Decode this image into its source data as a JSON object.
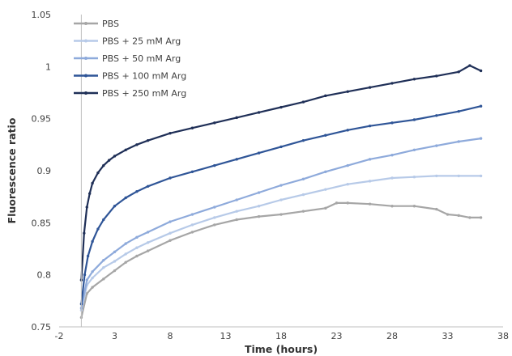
{
  "chart_data": {
    "type": "line",
    "title": "",
    "xlabel": "Time (hours)",
    "ylabel": "Fluorescence ratio",
    "xlim": [
      -2,
      38
    ],
    "ylim": [
      0.75,
      1.05
    ],
    "xticks": [
      -2,
      3,
      8,
      13,
      18,
      23,
      28,
      33,
      38
    ],
    "yticks": [
      0.75,
      0.8,
      0.85,
      0.9,
      0.95,
      1,
      1.05
    ],
    "xtick_labels": [
      "-2",
      "3",
      "8",
      "13",
      "18",
      "23",
      "28",
      "33",
      "38"
    ],
    "ytick_labels": [
      "0.75",
      "0.8",
      "0.85",
      "0.9",
      "0.95",
      "1",
      "1.05"
    ],
    "grid": false,
    "legend_position": "top-left",
    "series": [
      {
        "name": "PBS",
        "color": "#a6a6a6",
        "x": [
          0,
          0.5,
          1,
          2,
          3,
          4,
          5,
          6,
          8,
          10,
          12,
          14,
          16,
          18,
          20,
          22,
          23,
          24,
          26,
          28,
          30,
          32,
          33,
          34,
          35,
          36
        ],
        "y": [
          0.759,
          0.782,
          0.788,
          0.796,
          0.804,
          0.812,
          0.818,
          0.823,
          0.833,
          0.841,
          0.848,
          0.853,
          0.856,
          0.858,
          0.861,
          0.864,
          0.869,
          0.869,
          0.868,
          0.866,
          0.866,
          0.863,
          0.858,
          0.857,
          0.855,
          0.855
        ]
      },
      {
        "name": "PBS + 25 mM Arg",
        "color": "#b7cae8",
        "x": [
          0,
          0.5,
          1,
          2,
          3,
          4,
          5,
          6,
          8,
          10,
          12,
          14,
          16,
          18,
          20,
          22,
          24,
          26,
          28,
          30,
          32,
          34,
          36
        ],
        "y": [
          0.766,
          0.79,
          0.797,
          0.807,
          0.813,
          0.82,
          0.826,
          0.831,
          0.84,
          0.848,
          0.855,
          0.861,
          0.866,
          0.872,
          0.877,
          0.882,
          0.887,
          0.89,
          0.893,
          0.894,
          0.895,
          0.895,
          0.895
        ]
      },
      {
        "name": "PBS + 50 mM Arg",
        "color": "#8eaadb",
        "x": [
          0,
          0.5,
          1,
          2,
          3,
          4,
          5,
          6,
          8,
          10,
          12,
          14,
          16,
          18,
          20,
          22,
          24,
          26,
          28,
          30,
          32,
          34,
          36
        ],
        "y": [
          0.768,
          0.795,
          0.803,
          0.814,
          0.822,
          0.83,
          0.836,
          0.841,
          0.851,
          0.858,
          0.865,
          0.872,
          0.879,
          0.886,
          0.892,
          0.899,
          0.905,
          0.911,
          0.915,
          0.92,
          0.924,
          0.928,
          0.931
        ]
      },
      {
        "name": "PBS + 100 mM Arg",
        "color": "#2f5597",
        "x": [
          0,
          0.3,
          0.6,
          1,
          1.5,
          2,
          3,
          4,
          5,
          6,
          8,
          10,
          12,
          14,
          16,
          18,
          20,
          22,
          24,
          26,
          28,
          30,
          32,
          34,
          36
        ],
        "y": [
          0.772,
          0.8,
          0.818,
          0.832,
          0.844,
          0.853,
          0.866,
          0.874,
          0.88,
          0.885,
          0.893,
          0.899,
          0.905,
          0.911,
          0.917,
          0.923,
          0.929,
          0.934,
          0.939,
          0.943,
          0.946,
          0.949,
          0.953,
          0.957,
          0.962
        ]
      },
      {
        "name": "PBS + 250 mM Arg",
        "color": "#1f2f57",
        "x": [
          0,
          0.25,
          0.5,
          0.75,
          1,
          1.5,
          2,
          2.5,
          3,
          4,
          5,
          6,
          8,
          10,
          12,
          14,
          16,
          18,
          20,
          22,
          24,
          26,
          28,
          30,
          32,
          34,
          35,
          36
        ],
        "y": [
          0.795,
          0.84,
          0.865,
          0.878,
          0.888,
          0.898,
          0.905,
          0.91,
          0.914,
          0.92,
          0.925,
          0.929,
          0.936,
          0.941,
          0.946,
          0.951,
          0.956,
          0.961,
          0.966,
          0.972,
          0.976,
          0.98,
          0.984,
          0.988,
          0.991,
          0.995,
          1.001,
          0.996
        ]
      }
    ]
  }
}
